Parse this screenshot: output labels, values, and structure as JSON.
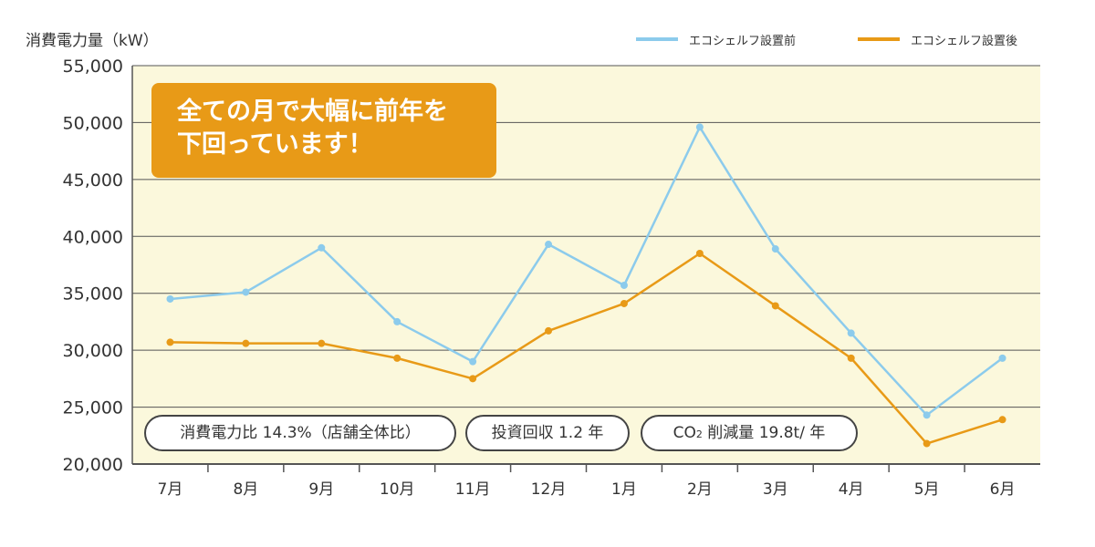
{
  "chart_data": {
    "type": "line",
    "ylabel": "消費電力量（kW）",
    "categories": [
      "7月",
      "8月",
      "9月",
      "10月",
      "11月",
      "12月",
      "1月",
      "2月",
      "3月",
      "4月",
      "5月",
      "6月"
    ],
    "ylim": [
      20000,
      55000
    ],
    "yticks": [
      20000,
      25000,
      30000,
      35000,
      40000,
      45000,
      50000,
      55000
    ],
    "ytick_labels": [
      "20,000",
      "25,000",
      "30,000",
      "35,000",
      "40,000",
      "45,000",
      "50,000",
      "55,000"
    ],
    "grid": true,
    "legend_position": "top-right",
    "series": [
      {
        "name": "エコシェルフ設置前",
        "color": "#8ccbec",
        "values": [
          34500,
          35100,
          39000,
          32500,
          29000,
          39300,
          35700,
          49600,
          38900,
          31500,
          24300,
          29300
        ]
      },
      {
        "name": "エコシェルフ設置後",
        "color": "#e89a17",
        "values": [
          30700,
          30600,
          30600,
          29300,
          27500,
          31700,
          34100,
          38500,
          33900,
          29300,
          21800,
          23900
        ]
      }
    ]
  },
  "callout": {
    "line1": "全ての月で大幅に前年を",
    "line2": "下回っています！"
  },
  "badges": {
    "power_ratio": "消費電力比 14.3%（店舗全体比）",
    "payback": "投資回収 1.2 年",
    "co2_prefix": "CO",
    "co2_sub": "2",
    "co2_suffix": " 削減量 19.8t/ 年"
  },
  "colors": {
    "plot_bg": "#fbf8dc",
    "grid": "#555555",
    "callout_bg": "#e89a17"
  }
}
